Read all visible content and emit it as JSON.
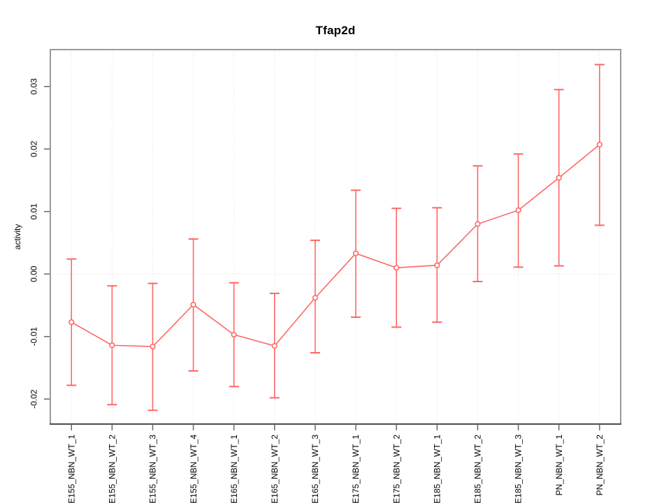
{
  "colors": {
    "series": "#FF6666",
    "grid": "#DBDBDB",
    "box": "#999999",
    "axis": "#4D4D4D",
    "tick": "#666666",
    "text": "#000000",
    "background": "#FFFFFF"
  },
  "chart_data": {
    "type": "scatter",
    "title": "Tfap2d",
    "xlabel": "",
    "ylabel": "activity",
    "legend": "none",
    "grid": {
      "vertical": "dotted-per-category",
      "horizontal": "dotted-at-zero-only"
    },
    "point_style": "open-circle-connected-with-error-bars",
    "categories": [
      "E155_NBN_WT_1",
      "E155_NBN_WT_2",
      "E155_NBN_WT_3",
      "E155_NBN_WT_4",
      "E165_NBN_WT_1",
      "E165_NBN_WT_2",
      "E165_NBN_WT_3",
      "E175_NBN_WT_1",
      "E175_NBN_WT_2",
      "E185_NBN_WT_1",
      "E185_NBN_WT_2",
      "E185_NBN_WT_3",
      "PN_NBN_WT_1",
      "PN_NBN_WT_2"
    ],
    "series": [
      {
        "name": "activity",
        "values": [
          -0.0077,
          -0.0114,
          -0.0116,
          -0.0049,
          -0.0097,
          -0.0115,
          -0.0038,
          0.0033,
          0.001,
          0.0014,
          0.008,
          0.0102,
          0.0154,
          0.0207
        ],
        "error_low": [
          -0.0178,
          -0.0209,
          -0.0218,
          -0.0155,
          -0.018,
          -0.0198,
          -0.0126,
          -0.0069,
          -0.0085,
          -0.0077,
          -0.0012,
          0.0011,
          0.0013,
          0.0078
        ],
        "error_high": [
          0.0024,
          -0.0019,
          -0.0015,
          0.0056,
          -0.0014,
          -0.0031,
          0.0054,
          0.0134,
          0.0105,
          0.0106,
          0.0173,
          0.0192,
          0.0295,
          0.0335
        ]
      }
    ],
    "yticks": [
      -0.02,
      -0.01,
      0,
      0.01,
      0.02,
      0.03
    ],
    "ytick_labels": [
      "-0.02",
      "-0.01",
      "0.00",
      "0.01",
      "0.02",
      "0.03"
    ],
    "ylim": [
      -0.024,
      0.0359
    ],
    "zero_line": true
  }
}
